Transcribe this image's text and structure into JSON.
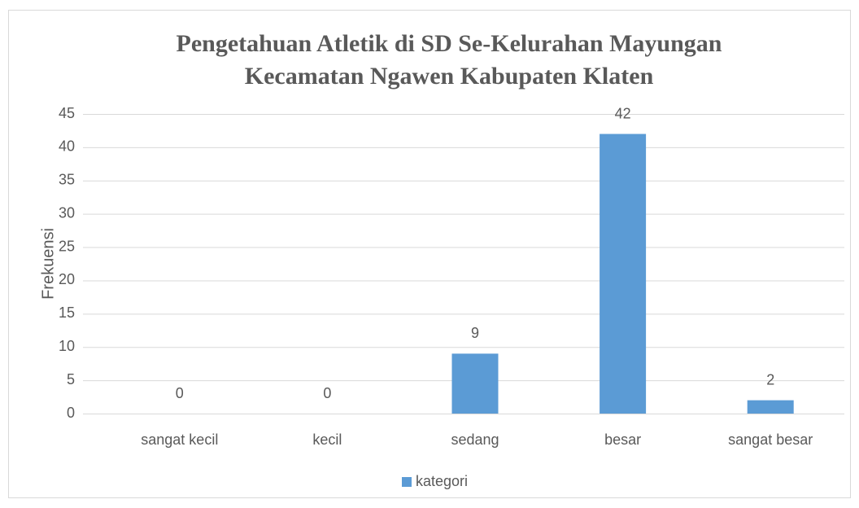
{
  "chart_data": {
    "type": "bar",
    "title": [
      "Pengetahuan Atletik di SD Se-Kelurahan Mayungan",
      "Kecamatan Ngawen Kabupaten Klaten"
    ],
    "ylabel": "Frekuensi",
    "categories": [
      "sangat kecil",
      "kecil",
      "sedang",
      "besar",
      "sangat besar"
    ],
    "series": [
      {
        "name": "kategori",
        "color": "#5b9bd5",
        "values": [
          0,
          0,
          9,
          42,
          2
        ]
      }
    ],
    "ylim": [
      0,
      45
    ],
    "yticks": [
      0,
      5,
      10,
      15,
      20,
      25,
      30,
      35,
      40,
      45
    ],
    "grid": true,
    "legend": "bottom",
    "data_labels": true
  }
}
